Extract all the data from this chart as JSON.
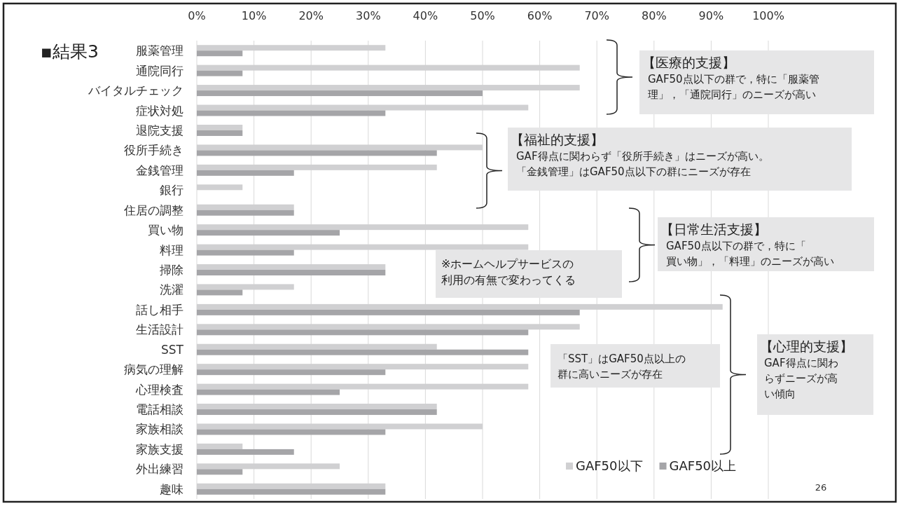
{
  "chart_data": {
    "type": "bar",
    "orientation": "horizontal",
    "title": "▪結果3",
    "categories": [
      "服薬管理",
      "通院同行",
      "バイタルチェック",
      "症状対処",
      "退院支援",
      "役所手続き",
      "金銭管理",
      "銀行",
      "住居の調整",
      "買い物",
      "料理",
      "掃除",
      "洗濯",
      "話し相手",
      "生活設計",
      "SST",
      "病気の理解",
      "心理検査",
      "電話相談",
      "家族相談",
      "家族支援",
      "外出練習",
      "趣味"
    ],
    "series": [
      {
        "name": "GAF50以下",
        "color": "#d0d0d2",
        "values": [
          33,
          67,
          67,
          58,
          8,
          50,
          42,
          8,
          17,
          58,
          58,
          33,
          17,
          92,
          67,
          42,
          58,
          58,
          42,
          50,
          8,
          25,
          33
        ]
      },
      {
        "name": "GAF50以上",
        "color": "#a5a5a8",
        "values": [
          8,
          8,
          50,
          33,
          8,
          42,
          17,
          0,
          17,
          25,
          17,
          33,
          8,
          67,
          58,
          58,
          33,
          25,
          42,
          33,
          17,
          8,
          33
        ]
      }
    ],
    "xlim": [
      0,
      100
    ],
    "xticks": [
      {
        "value": 0,
        "label": "0%"
      },
      {
        "value": 10,
        "label": "10%"
      },
      {
        "value": 20,
        "label": "20%"
      },
      {
        "value": 30,
        "label": "30%"
      },
      {
        "value": 40,
        "label": "40%"
      },
      {
        "value": 50,
        "label": "50%"
      },
      {
        "value": 60,
        "label": "60%"
      },
      {
        "value": 70,
        "label": "70%"
      },
      {
        "value": 80,
        "label": "80%"
      },
      {
        "value": 90,
        "label": "90%"
      },
      {
        "value": 100,
        "label": "100%"
      }
    ],
    "grid": "x",
    "legend": "bottom right",
    "annotations": [
      "【医療的支援】",
      "GAF50点以下の群で，特に「服薬管理」，「通院同行」のニーズが高い",
      "【福祉的支援】",
      "GAF得点に関わらず「役所手続き」はニーズが高い。「金銭管理」はGAF50点以下の群にニーズが存在",
      "【日常生活支援】",
      "GAF50点以下の群で，特に「買い物」，「料理」のニーズが高い",
      "※ホームヘルプサービスの利用の有無で変わってくる",
      "「SST」はGAF50点以上の群に高いニーズが存在",
      "【心理的支援】",
      "GAF得点に関わらずニーズが高い傾向",
      "26"
    ]
  }
}
